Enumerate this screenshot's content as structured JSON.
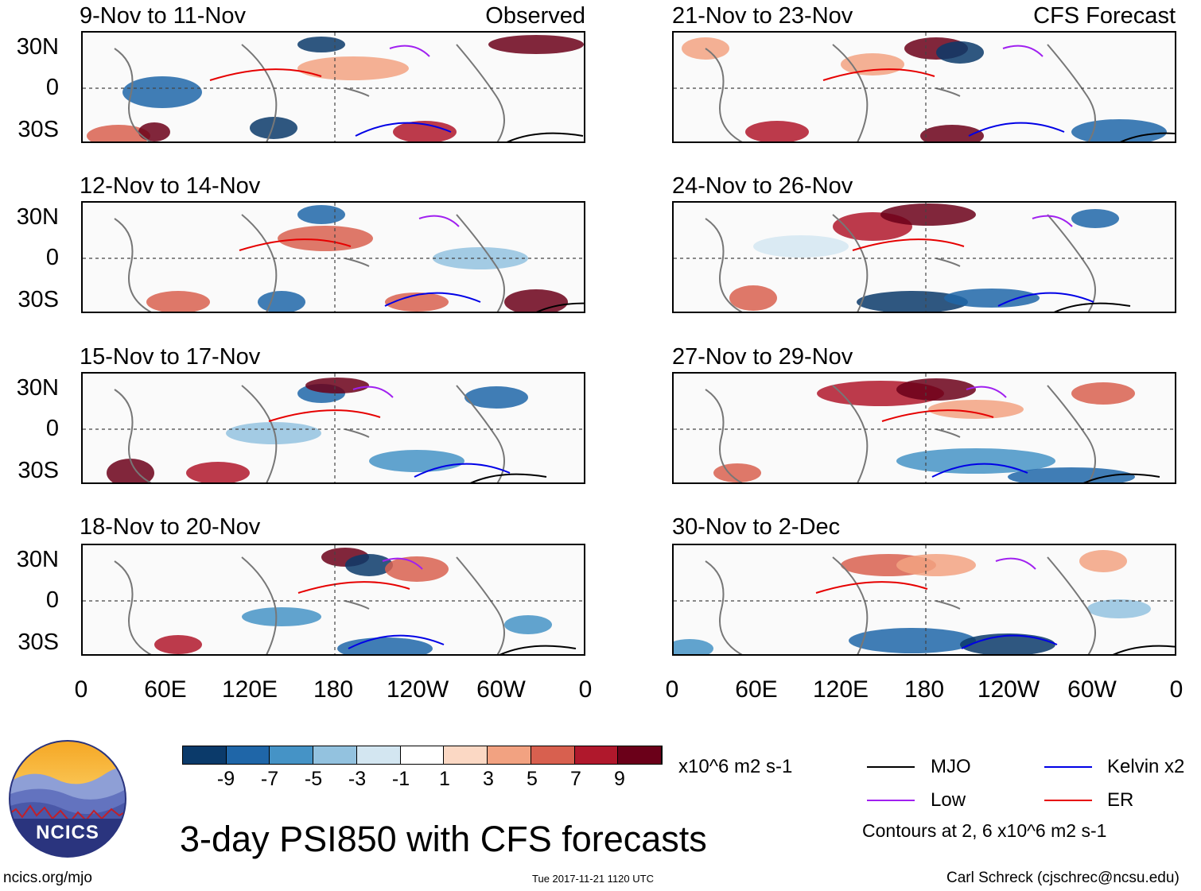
{
  "header": {
    "left_tag": "Observed",
    "right_tag": "CFS Forecast"
  },
  "panels_left": [
    {
      "title": "9-Nov to 11-Nov"
    },
    {
      "title": "12-Nov to 14-Nov"
    },
    {
      "title": "15-Nov to 17-Nov"
    },
    {
      "title": "18-Nov to 20-Nov"
    }
  ],
  "panels_right": [
    {
      "title": "21-Nov to 23-Nov"
    },
    {
      "title": "24-Nov to 26-Nov"
    },
    {
      "title": "27-Nov to 29-Nov"
    },
    {
      "title": "30-Nov to 2-Dec"
    }
  ],
  "lat_labels": [
    "30N",
    "0",
    "30S"
  ],
  "lon_labels": [
    "0",
    "60E",
    "120E",
    "180",
    "120W",
    "60W",
    "0"
  ],
  "colorbar": {
    "ticks": [
      "-9",
      "-7",
      "-5",
      "-3",
      "-1",
      "1",
      "3",
      "5",
      "7",
      "9"
    ],
    "units": "x10^6 m2 s-1",
    "colors": [
      "#0b3a6a",
      "#1f66a8",
      "#4593c6",
      "#93c2df",
      "#d3e6f1",
      "#ffffff",
      "#fbd8c4",
      "#f2a281",
      "#d8604f",
      "#b0182c",
      "#6b0019"
    ]
  },
  "legend": {
    "items": [
      {
        "label": "MJO",
        "color": "#000000"
      },
      {
        "label": "Kelvin x2",
        "color": "#0000e6"
      },
      {
        "label": "Low",
        "color": "#a020f0"
      },
      {
        "label": "ER",
        "color": "#e60000"
      }
    ],
    "contours_note": "Contours at 2, 6 x10^6 m2 s-1"
  },
  "main_title": "3-day PSI850 with CFS forecasts",
  "logo": {
    "text": "NCICS"
  },
  "footer": {
    "url": "ncics.org/mjo",
    "timestamp": "Tue 2017-11-21 1120 UTC",
    "author": "Carl Schreck (cjschrec@ncsu.edu)"
  }
}
